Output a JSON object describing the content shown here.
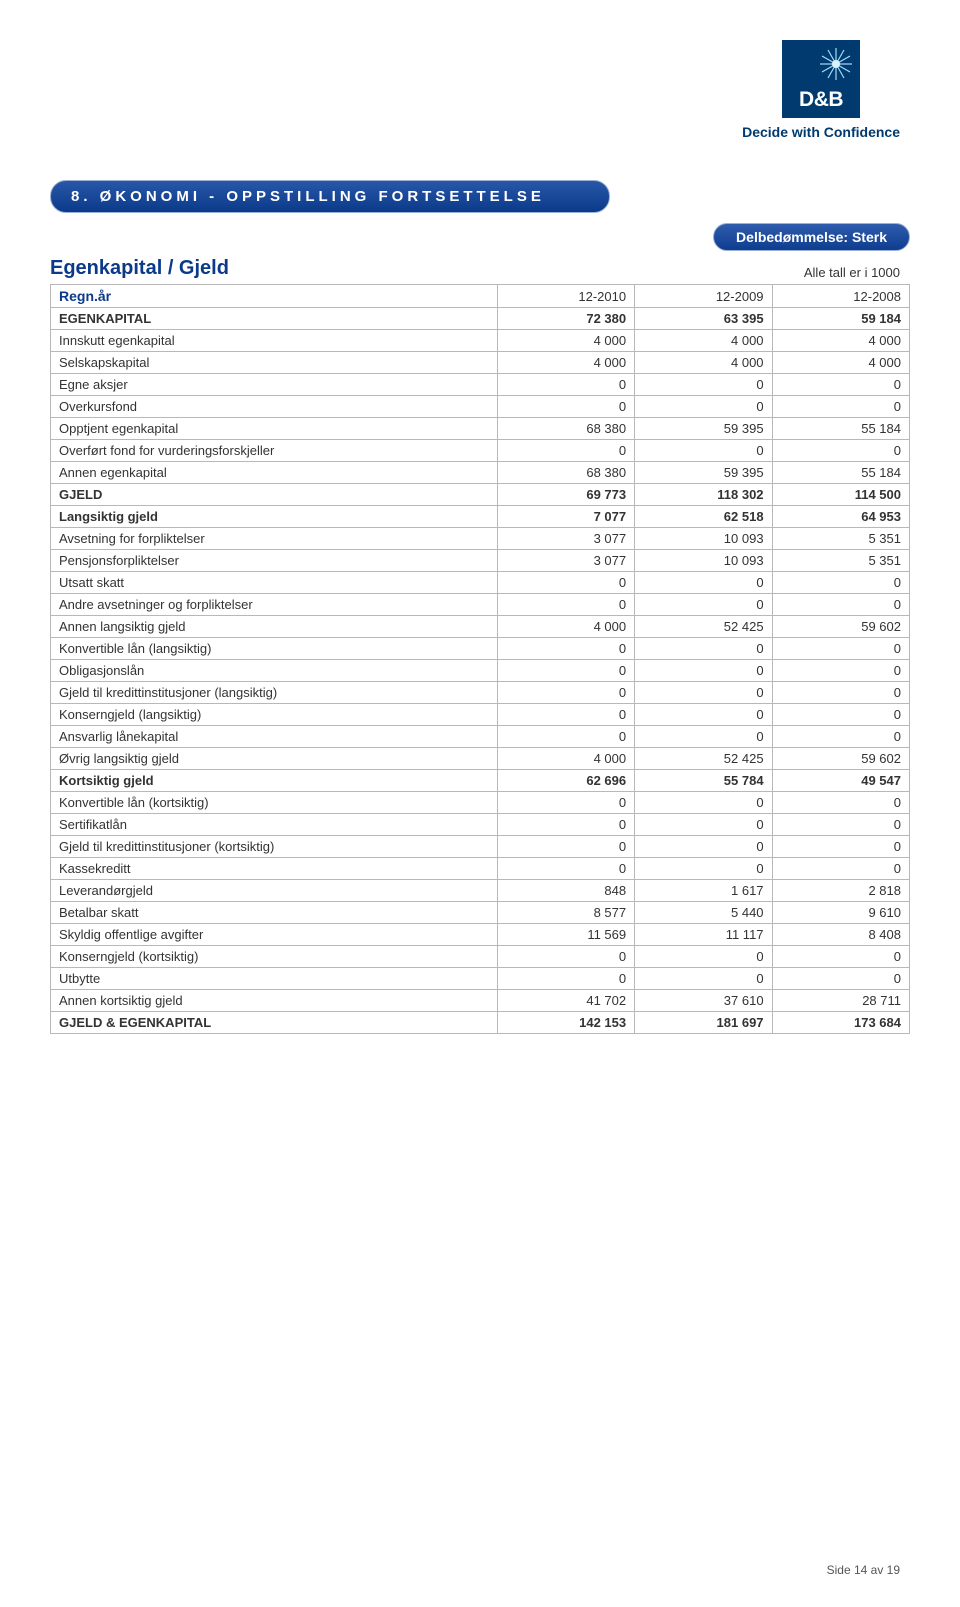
{
  "logo": {
    "brand": "D&B",
    "tagline": "Decide with Confidence",
    "bg_color": "#003a6f",
    "sun_color": "#8fd6f5"
  },
  "section_bar": "8. ØKONOMI - OPPSTILLING FORTSETTELSE",
  "sub_bar": "Delbedømmelse: Sterk",
  "section_title": "Egenkapital / Gjeld",
  "units_note": "Alle tall er i 1000",
  "table": {
    "header_label": "Regn.år",
    "columns": [
      "12-2010",
      "12-2009",
      "12-2008"
    ],
    "rows": [
      {
        "label": "EGENKAPITAL",
        "vals": [
          "72 380",
          "63 395",
          "59 184"
        ],
        "bold": true
      },
      {
        "label": "Innskutt egenkapital",
        "vals": [
          "4 000",
          "4 000",
          "4 000"
        ],
        "bold": false
      },
      {
        "label": "Selskapskapital",
        "vals": [
          "4 000",
          "4 000",
          "4 000"
        ],
        "bold": false
      },
      {
        "label": "Egne aksjer",
        "vals": [
          "0",
          "0",
          "0"
        ],
        "bold": false
      },
      {
        "label": "Overkursfond",
        "vals": [
          "0",
          "0",
          "0"
        ],
        "bold": false
      },
      {
        "label": "Opptjent egenkapital",
        "vals": [
          "68 380",
          "59 395",
          "55 184"
        ],
        "bold": false
      },
      {
        "label": "Overført fond for vurderingsforskjeller",
        "vals": [
          "0",
          "0",
          "0"
        ],
        "bold": false
      },
      {
        "label": "Annen egenkapital",
        "vals": [
          "68 380",
          "59 395",
          "55 184"
        ],
        "bold": false
      },
      {
        "label": "GJELD",
        "vals": [
          "69 773",
          "118 302",
          "114 500"
        ],
        "bold": true
      },
      {
        "label": "Langsiktig gjeld",
        "vals": [
          "7 077",
          "62 518",
          "64 953"
        ],
        "bold": true
      },
      {
        "label": "Avsetning for forpliktelser",
        "vals": [
          "3 077",
          "10 093",
          "5 351"
        ],
        "bold": false
      },
      {
        "label": "Pensjonsforpliktelser",
        "vals": [
          "3 077",
          "10 093",
          "5 351"
        ],
        "bold": false
      },
      {
        "label": "Utsatt skatt",
        "vals": [
          "0",
          "0",
          "0"
        ],
        "bold": false
      },
      {
        "label": "Andre avsetninger og forpliktelser",
        "vals": [
          "0",
          "0",
          "0"
        ],
        "bold": false
      },
      {
        "label": "Annen langsiktig gjeld",
        "vals": [
          "4 000",
          "52 425",
          "59 602"
        ],
        "bold": false
      },
      {
        "label": "Konvertible lån (langsiktig)",
        "vals": [
          "0",
          "0",
          "0"
        ],
        "bold": false
      },
      {
        "label": "Obligasjonslån",
        "vals": [
          "0",
          "0",
          "0"
        ],
        "bold": false
      },
      {
        "label": "Gjeld til kredittinstitusjoner (langsiktig)",
        "vals": [
          "0",
          "0",
          "0"
        ],
        "bold": false
      },
      {
        "label": "Konserngjeld (langsiktig)",
        "vals": [
          "0",
          "0",
          "0"
        ],
        "bold": false
      },
      {
        "label": "Ansvarlig lånekapital",
        "vals": [
          "0",
          "0",
          "0"
        ],
        "bold": false
      },
      {
        "label": "Øvrig langsiktig gjeld",
        "vals": [
          "4 000",
          "52 425",
          "59 602"
        ],
        "bold": false
      },
      {
        "label": "Kortsiktig gjeld",
        "vals": [
          "62 696",
          "55 784",
          "49 547"
        ],
        "bold": true
      },
      {
        "label": "Konvertible lån (kortsiktig)",
        "vals": [
          "0",
          "0",
          "0"
        ],
        "bold": false
      },
      {
        "label": "Sertifikatlån",
        "vals": [
          "0",
          "0",
          "0"
        ],
        "bold": false
      },
      {
        "label": "Gjeld til kredittinstitusjoner (kortsiktig)",
        "vals": [
          "0",
          "0",
          "0"
        ],
        "bold": false
      },
      {
        "label": "Kassekreditt",
        "vals": [
          "0",
          "0",
          "0"
        ],
        "bold": false
      },
      {
        "label": "Leverandørgjeld",
        "vals": [
          "848",
          "1 617",
          "2 818"
        ],
        "bold": false
      },
      {
        "label": "Betalbar skatt",
        "vals": [
          "8 577",
          "5 440",
          "9 610"
        ],
        "bold": false
      },
      {
        "label": "Skyldig offentlige avgifter",
        "vals": [
          "11 569",
          "11 117",
          "8 408"
        ],
        "bold": false
      },
      {
        "label": "Konserngjeld (kortsiktig)",
        "vals": [
          "0",
          "0",
          "0"
        ],
        "bold": false
      },
      {
        "label": "Utbytte",
        "vals": [
          "0",
          "0",
          "0"
        ],
        "bold": false
      },
      {
        "label": "Annen kortsiktig gjeld",
        "vals": [
          "41 702",
          "37 610",
          "28 711"
        ],
        "bold": false
      },
      {
        "label": "GJELD & EGENKAPITAL",
        "vals": [
          "142 153",
          "181 697",
          "173 684"
        ],
        "bold": true
      }
    ]
  },
  "footer": "Side 14 av 19"
}
